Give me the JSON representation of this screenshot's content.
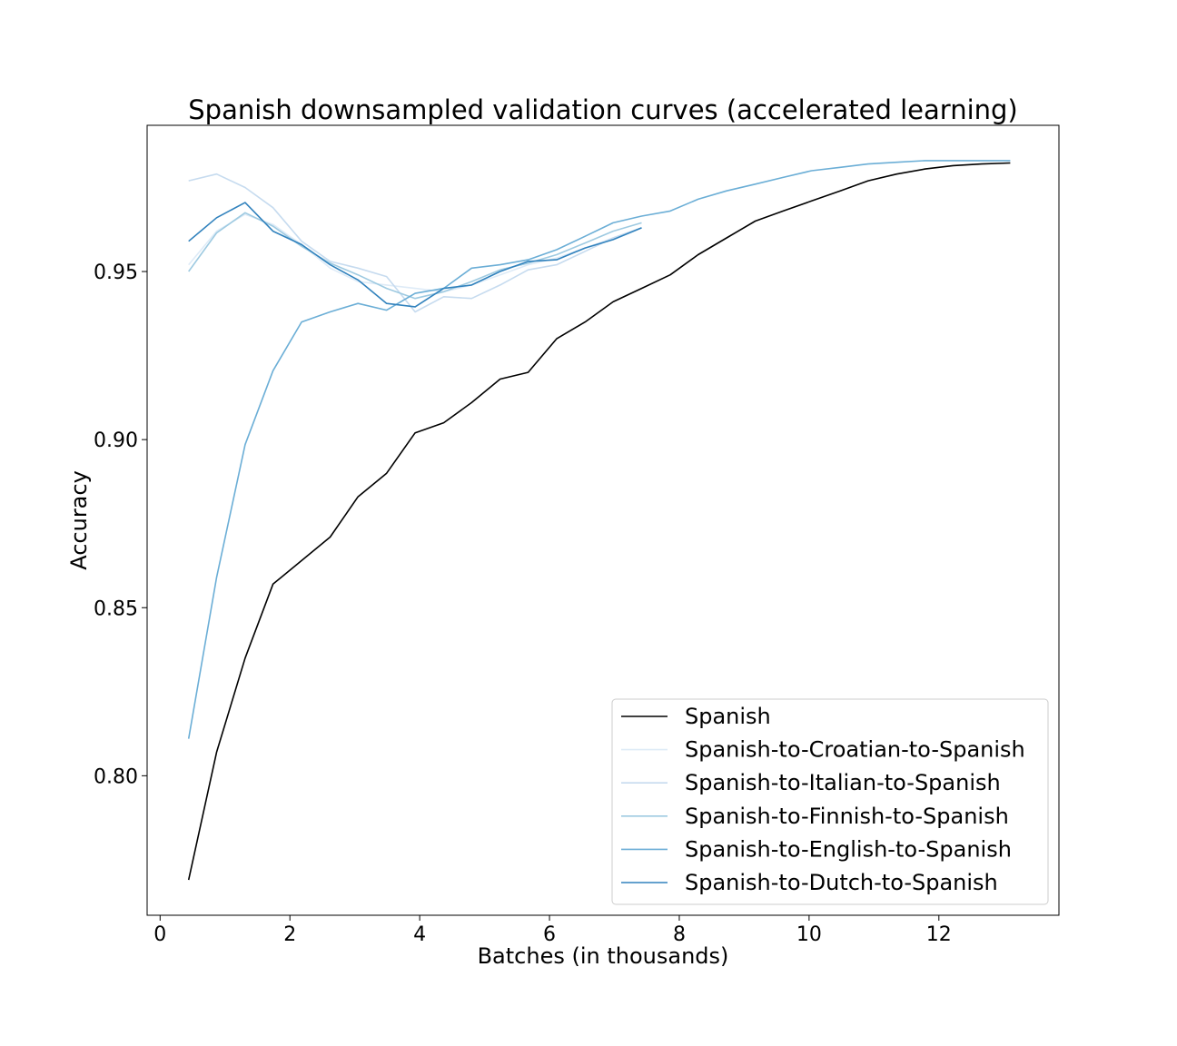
{
  "chart_data": {
    "type": "line",
    "title": "Spanish downsampled validation curves (accelerated learning)",
    "xlabel": "Batches (in thousands)",
    "ylabel": "Accuracy",
    "xlim": [
      -0.2,
      13.85
    ],
    "ylim": [
      0.7585,
      0.9935
    ],
    "xticks": [
      0,
      2,
      4,
      6,
      8,
      10,
      12
    ],
    "yticks": [
      0.8,
      0.85,
      0.9,
      0.95
    ],
    "xtick_labels": [
      "0",
      "2",
      "4",
      "6",
      "8",
      "10",
      "12"
    ],
    "ytick_labels": [
      "0.80",
      "0.85",
      "0.90",
      "0.95"
    ],
    "grid": false,
    "legend_position": "lower-right",
    "series": [
      {
        "name": "Spanish",
        "color": "#000000",
        "x": [
          0.44,
          0.87,
          1.31,
          1.74,
          2.18,
          2.62,
          3.05,
          3.49,
          3.93,
          4.37,
          4.8,
          5.24,
          5.67,
          6.11,
          6.55,
          6.98,
          7.42,
          7.86,
          8.29,
          8.73,
          9.17,
          9.6,
          10.04,
          10.48,
          10.91,
          11.35,
          11.79,
          12.22,
          12.66,
          13.1
        ],
        "y": [
          0.769,
          0.807,
          0.835,
          0.857,
          0.864,
          0.871,
          0.883,
          0.89,
          0.902,
          0.905,
          0.911,
          0.918,
          0.92,
          0.93,
          0.935,
          0.941,
          0.945,
          0.949,
          0.955,
          0.96,
          0.965,
          0.968,
          0.971,
          0.974,
          0.977,
          0.979,
          0.9805,
          0.9815,
          0.982,
          0.9823
        ]
      },
      {
        "name": "Spanish-to-Croatian-to-Spanish",
        "color": "#deebf7",
        "x": [
          0.44,
          0.87,
          1.31,
          1.74,
          2.18,
          2.62,
          3.05,
          3.49,
          3.93,
          4.37,
          4.8,
          5.24,
          5.67,
          6.11,
          6.55,
          6.98,
          7.42
        ],
        "y": [
          0.952,
          0.962,
          0.967,
          0.964,
          0.958,
          0.951,
          0.947,
          0.946,
          0.945,
          0.944,
          0.946,
          0.949,
          0.952,
          0.954,
          0.957,
          0.96,
          0.963
        ]
      },
      {
        "name": "Spanish-to-Italian-to-Spanish",
        "color": "#c6dbef",
        "x": [
          0.44,
          0.87,
          1.31,
          1.74,
          2.18,
          2.62,
          3.05,
          3.49,
          3.93,
          4.37,
          4.8,
          5.24,
          5.67,
          6.11,
          6.55,
          6.98,
          7.42
        ],
        "y": [
          0.977,
          0.979,
          0.975,
          0.969,
          0.959,
          0.953,
          0.951,
          0.9485,
          0.938,
          0.9425,
          0.942,
          0.946,
          0.9505,
          0.952,
          0.956,
          0.96,
          0.963
        ]
      },
      {
        "name": "Spanish-to-Finnish-to-Spanish",
        "color": "#9ecae1",
        "x": [
          0.44,
          0.87,
          1.31,
          1.74,
          2.18,
          2.62,
          3.05,
          3.49,
          3.93,
          4.37,
          4.8,
          5.24,
          5.67,
          6.11,
          6.55,
          6.98,
          7.42
        ],
        "y": [
          0.95,
          0.9615,
          0.9675,
          0.9635,
          0.9575,
          0.9525,
          0.949,
          0.945,
          0.942,
          0.944,
          0.947,
          0.9505,
          0.9525,
          0.955,
          0.9585,
          0.962,
          0.9645
        ]
      },
      {
        "name": "Spanish-to-English-to-Spanish",
        "color": "#6baed6",
        "x": [
          0.44,
          0.87,
          1.31,
          1.74,
          2.18,
          2.62,
          3.05,
          3.49,
          3.93,
          4.37,
          4.8,
          5.24,
          5.67,
          6.11,
          6.55,
          6.98,
          7.42,
          7.86,
          8.29,
          8.73,
          9.17,
          9.6,
          10.04,
          10.48,
          10.91,
          11.35,
          11.79,
          12.22,
          12.66,
          13.1
        ],
        "y": [
          0.811,
          0.859,
          0.8985,
          0.9205,
          0.935,
          0.938,
          0.9405,
          0.9385,
          0.9435,
          0.945,
          0.951,
          0.952,
          0.9535,
          0.9565,
          0.9605,
          0.9645,
          0.9665,
          0.968,
          0.9715,
          0.974,
          0.976,
          0.978,
          0.98,
          0.981,
          0.982,
          0.9825,
          0.983,
          0.983,
          0.983,
          0.983
        ]
      },
      {
        "name": "Spanish-to-Dutch-to-Spanish",
        "color": "#3182bd",
        "x": [
          0.44,
          0.87,
          1.31,
          1.74,
          2.18,
          2.62,
          3.05,
          3.49,
          3.93,
          4.37,
          4.8,
          5.24,
          5.67,
          6.11,
          6.55,
          6.98,
          7.42
        ],
        "y": [
          0.959,
          0.966,
          0.9705,
          0.962,
          0.958,
          0.952,
          0.9475,
          0.9405,
          0.9395,
          0.945,
          0.946,
          0.95,
          0.953,
          0.9535,
          0.957,
          0.9595,
          0.963
        ]
      }
    ]
  }
}
